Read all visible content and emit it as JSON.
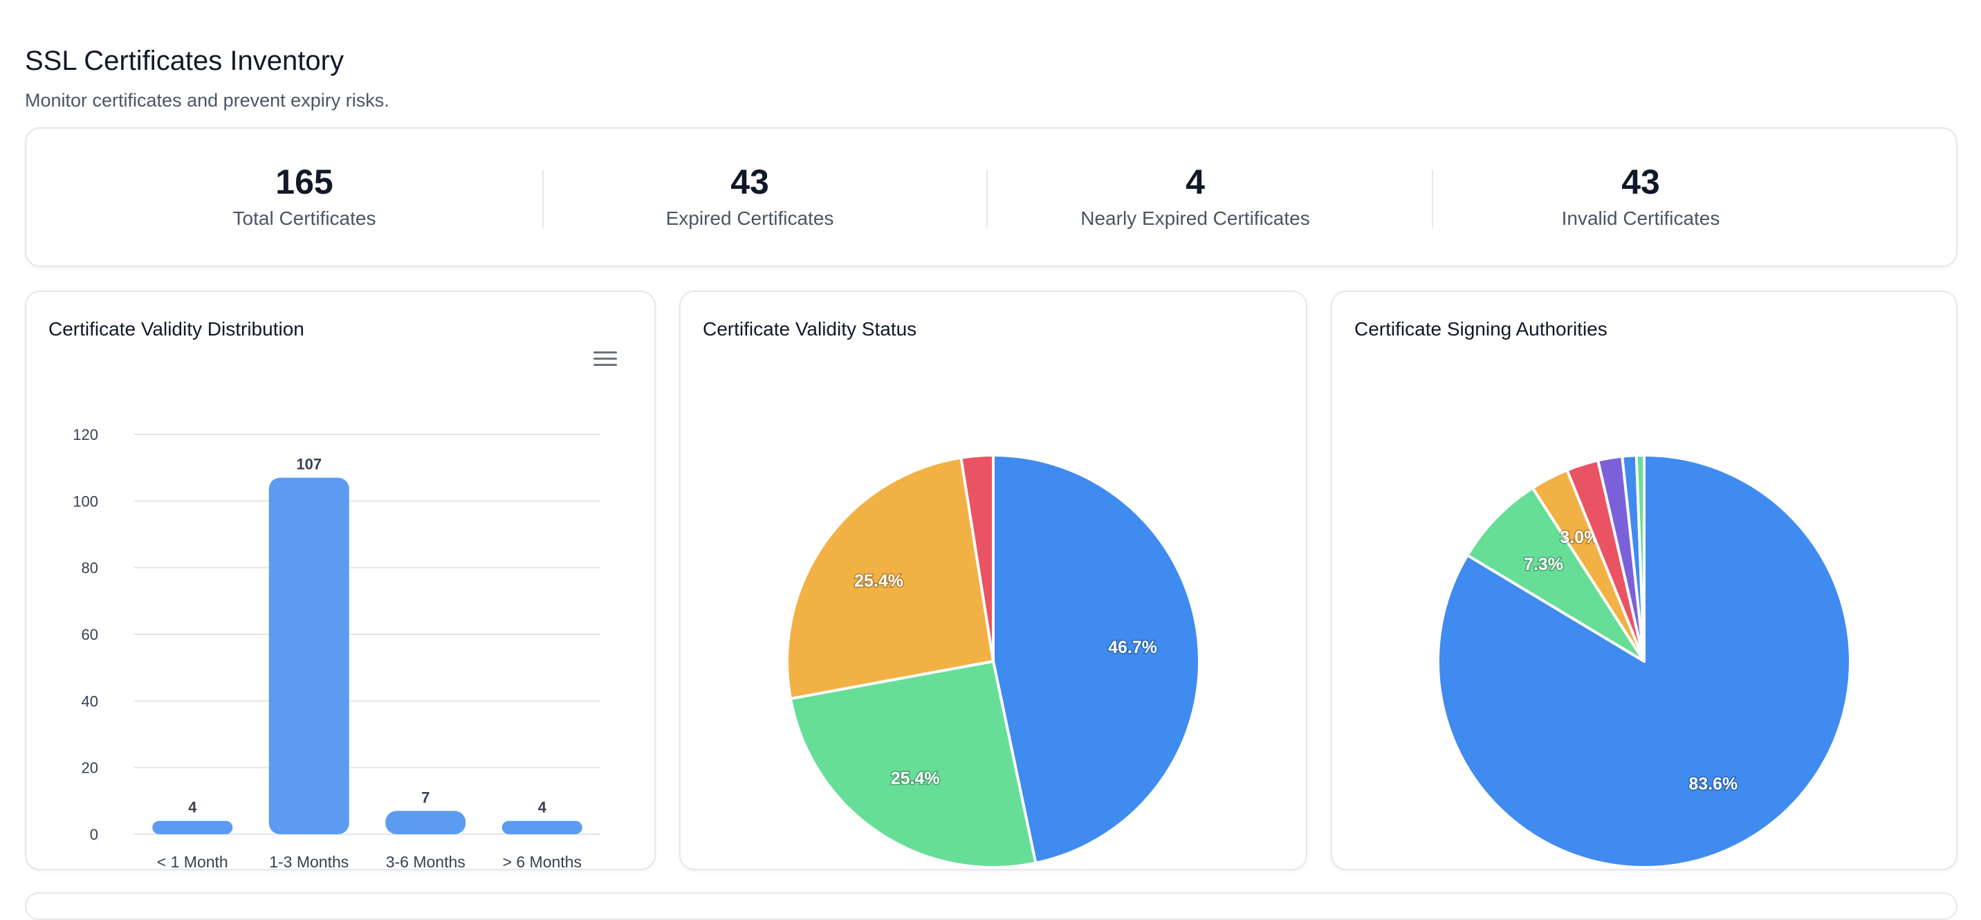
{
  "header": {
    "title": "SSL Certificates Inventory",
    "subtitle": "Monitor certificates and prevent expiry risks."
  },
  "stats": [
    {
      "value": "165",
      "label": "Total Certificates"
    },
    {
      "value": "43",
      "label": "Expired Certificates"
    },
    {
      "value": "4",
      "label": "Nearly Expired Certificates"
    },
    {
      "value": "43",
      "label": "Invalid Certificates"
    }
  ],
  "panels": {
    "distribution_title": "Certificate Validity Distribution",
    "status_title": "Certificate Validity Status",
    "authorities_title": "Certificate Signing Authorities"
  },
  "chart_data": [
    {
      "type": "bar",
      "title": "Certificate Validity Distribution",
      "categories": [
        "< 1 Month",
        "1-3 Months",
        "3-6 Months",
        "> 6 Months"
      ],
      "values": [
        4,
        107,
        7,
        4
      ],
      "ylim": [
        0,
        120
      ],
      "yticks": [
        0,
        20,
        40,
        60,
        80,
        100,
        120
      ],
      "grid": true,
      "color": "#5b9cf2"
    },
    {
      "type": "pie",
      "title": "Certificate Validity Status",
      "slices": [
        {
          "value": 46.7,
          "label": "46.7%",
          "color": "#3f8bf0"
        },
        {
          "value": 25.4,
          "label": "25.4%",
          "color": "#66de98"
        },
        {
          "value": 25.4,
          "label": "25.4%",
          "color": "#f2b144"
        },
        {
          "value": 2.5,
          "label": "",
          "color": "#ea5363"
        }
      ]
    },
    {
      "type": "pie",
      "title": "Certificate Signing Authorities",
      "slices": [
        {
          "value": 83.6,
          "label": "83.6%",
          "color": "#3f8bf0"
        },
        {
          "value": 7.3,
          "label": "7.3%",
          "color": "#66de98"
        },
        {
          "value": 3.0,
          "label": "3.0%",
          "color": "#f2b144"
        },
        {
          "value": 2.5,
          "label": "",
          "color": "#ea5363"
        },
        {
          "value": 1.9,
          "label": "",
          "color": "#7b61d9"
        },
        {
          "value": 1.1,
          "label": "",
          "color": "#3f8bf0"
        },
        {
          "value": 0.6,
          "label": "",
          "color": "#66de98"
        }
      ]
    }
  ]
}
